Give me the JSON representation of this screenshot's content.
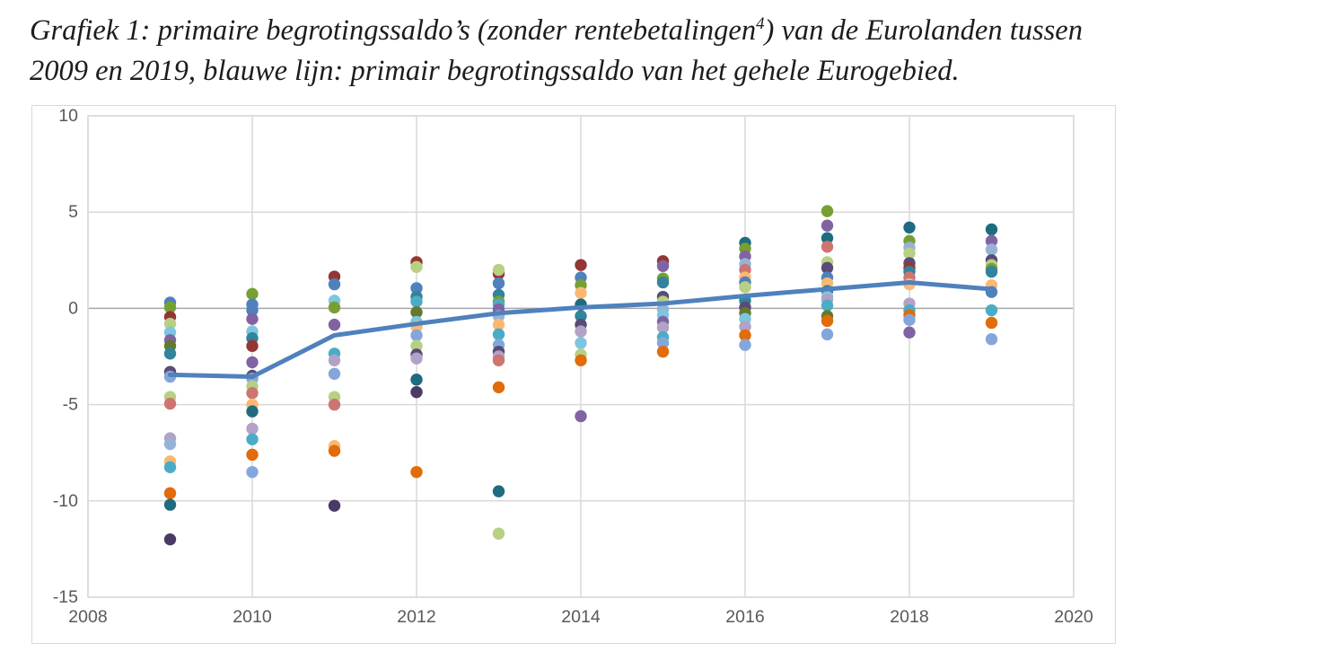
{
  "title": {
    "line1_pre": "Grafiek 1: primaire begrotingssaldo’s (zonder rentebetalingen",
    "line1_sup": "4",
    "line1_post": ") van de Eurolanden tussen",
    "line2": "2009 en 2019, blauwe lijn: primair begrotingssaldo van het gehele Eurogebied."
  },
  "chart_data": {
    "type": "scatter",
    "title": "",
    "xlabel": "",
    "ylabel": "",
    "x_range": [
      2008,
      2020
    ],
    "y_range": [
      -15,
      10
    ],
    "x_ticks": [
      2008,
      2010,
      2012,
      2014,
      2016,
      2018,
      2020
    ],
    "y_ticks": [
      10,
      5,
      0,
      -5,
      -10,
      -15
    ],
    "grid": true,
    "legend": "none",
    "axis_label_color": "#595959",
    "grid_color": "#d9d9d9",
    "zero_line_color": "#a6a6a6",
    "line_series": {
      "name": "primair begrotingssaldo gehele Eurogebied",
      "color": "#4F81BD",
      "width": 5,
      "x": [
        2009,
        2010,
        2011,
        2012,
        2013,
        2014,
        2015,
        2016,
        2017,
        2018,
        2019
      ],
      "y": [
        -3.45,
        -3.55,
        -1.4,
        -0.8,
        -0.25,
        0.05,
        0.25,
        0.65,
        1.0,
        1.35,
        1.0
      ]
    },
    "palette": {
      "steelblue": "#4F81BD",
      "olive": "#77A033",
      "maroon": "#943634",
      "sky": "#7DC6E2",
      "purple": "#8064A2",
      "darkolive": "#637A2D",
      "teal": "#31849B",
      "indigo": "#5B4B77",
      "cornflower": "#84A7DB",
      "lightgreen": "#B7D084",
      "rose": "#CE7572",
      "lavender": "#B3A2C7",
      "paleblue": "#95B3D7",
      "peach": "#FAB873",
      "cyan": "#4BACC6",
      "darkorange": "#E26B0A",
      "darkteal": "#1F6C80",
      "darkindigo": "#4B3A63"
    },
    "dot_radius": 6.7,
    "scatter": [
      {
        "year": 2009,
        "points": [
          {
            "v": 0.3,
            "c": "steelblue"
          },
          {
            "v": 0.05,
            "c": "olive"
          },
          {
            "v": -0.45,
            "c": "maroon"
          },
          {
            "v": -0.8,
            "c": "lightgreen"
          },
          {
            "v": -1.25,
            "c": "sky"
          },
          {
            "v": -1.65,
            "c": "purple"
          },
          {
            "v": -1.95,
            "c": "darkolive"
          },
          {
            "v": -2.35,
            "c": "teal"
          },
          {
            "v": -3.3,
            "c": "indigo"
          },
          {
            "v": -3.55,
            "c": "cornflower"
          },
          {
            "v": -4.6,
            "c": "lightgreen"
          },
          {
            "v": -4.95,
            "c": "rose"
          },
          {
            "v": -6.75,
            "c": "lavender"
          },
          {
            "v": -7.05,
            "c": "paleblue"
          },
          {
            "v": -7.95,
            "c": "peach"
          },
          {
            "v": -8.25,
            "c": "cyan"
          },
          {
            "v": -9.6,
            "c": "darkorange"
          },
          {
            "v": -10.2,
            "c": "darkteal"
          },
          {
            "v": -12.0,
            "c": "darkindigo"
          }
        ]
      },
      {
        "year": 2010,
        "points": [
          {
            "v": 0.75,
            "c": "olive"
          },
          {
            "v": 0.2,
            "c": "steelblue"
          },
          {
            "v": -0.1,
            "c": "steelblue"
          },
          {
            "v": -0.55,
            "c": "purple"
          },
          {
            "v": -1.2,
            "c": "sky"
          },
          {
            "v": -1.55,
            "c": "teal"
          },
          {
            "v": -1.95,
            "c": "maroon"
          },
          {
            "v": -2.8,
            "c": "purple"
          },
          {
            "v": -3.5,
            "c": "indigo"
          },
          {
            "v": -3.65,
            "c": "cornflower"
          },
          {
            "v": -4.05,
            "c": "lightgreen"
          },
          {
            "v": -4.4,
            "c": "rose"
          },
          {
            "v": -5.0,
            "c": "peach"
          },
          {
            "v": -5.35,
            "c": "darkteal"
          },
          {
            "v": -6.25,
            "c": "lavender"
          },
          {
            "v": -6.8,
            "c": "cyan"
          },
          {
            "v": -7.6,
            "c": "darkorange"
          },
          {
            "v": -8.5,
            "c": "cornflower"
          }
        ]
      },
      {
        "year": 2011,
        "points": [
          {
            "v": 1.65,
            "c": "maroon"
          },
          {
            "v": 1.25,
            "c": "steelblue"
          },
          {
            "v": 0.4,
            "c": "sky"
          },
          {
            "v": 0.05,
            "c": "olive"
          },
          {
            "v": -0.85,
            "c": "purple"
          },
          {
            "v": -2.35,
            "c": "cyan"
          },
          {
            "v": -2.7,
            "c": "lavender"
          },
          {
            "v": -3.4,
            "c": "cornflower"
          },
          {
            "v": -4.6,
            "c": "lightgreen"
          },
          {
            "v": -5.0,
            "c": "rose"
          },
          {
            "v": -7.15,
            "c": "peach"
          },
          {
            "v": -7.4,
            "c": "darkorange"
          },
          {
            "v": -10.25,
            "c": "darkindigo"
          }
        ]
      },
      {
        "year": 2012,
        "points": [
          {
            "v": 2.4,
            "c": "maroon"
          },
          {
            "v": 2.15,
            "c": "lightgreen"
          },
          {
            "v": 1.05,
            "c": "steelblue"
          },
          {
            "v": 0.6,
            "c": "teal"
          },
          {
            "v": 0.35,
            "c": "cyan"
          },
          {
            "v": -0.2,
            "c": "darkolive"
          },
          {
            "v": -0.7,
            "c": "sky"
          },
          {
            "v": -0.95,
            "c": "peach"
          },
          {
            "v": -1.4,
            "c": "cornflower"
          },
          {
            "v": -1.95,
            "c": "lightgreen"
          },
          {
            "v": -2.4,
            "c": "indigo"
          },
          {
            "v": -2.6,
            "c": "lavender"
          },
          {
            "v": -3.7,
            "c": "darkteal"
          },
          {
            "v": -4.35,
            "c": "darkindigo"
          },
          {
            "v": -8.5,
            "c": "darkorange"
          }
        ]
      },
      {
        "year": 2013,
        "points": [
          {
            "v": 1.8,
            "c": "maroon"
          },
          {
            "v": 2.0,
            "c": "lightgreen"
          },
          {
            "v": 1.3,
            "c": "steelblue"
          },
          {
            "v": 0.7,
            "c": "teal"
          },
          {
            "v": 0.35,
            "c": "olive"
          },
          {
            "v": 0.2,
            "c": "cyan"
          },
          {
            "v": -0.05,
            "c": "purple"
          },
          {
            "v": -0.4,
            "c": "paleblue"
          },
          {
            "v": -0.85,
            "c": "peach"
          },
          {
            "v": -1.35,
            "c": "cyan"
          },
          {
            "v": -1.9,
            "c": "cornflower"
          },
          {
            "v": -2.25,
            "c": "indigo"
          },
          {
            "v": -2.5,
            "c": "lavender"
          },
          {
            "v": -2.7,
            "c": "rose"
          },
          {
            "v": -4.1,
            "c": "darkorange"
          },
          {
            "v": -9.5,
            "c": "darkteal"
          },
          {
            "v": -11.7,
            "c": "lightgreen"
          }
        ]
      },
      {
        "year": 2014,
        "points": [
          {
            "v": 2.25,
            "c": "maroon"
          },
          {
            "v": 1.6,
            "c": "steelblue"
          },
          {
            "v": 1.2,
            "c": "olive"
          },
          {
            "v": 0.8,
            "c": "peach"
          },
          {
            "v": 0.2,
            "c": "darkteal"
          },
          {
            "v": -0.4,
            "c": "teal"
          },
          {
            "v": -0.85,
            "c": "indigo"
          },
          {
            "v": -1.2,
            "c": "lavender"
          },
          {
            "v": -1.8,
            "c": "sky"
          },
          {
            "v": -2.4,
            "c": "lightgreen"
          },
          {
            "v": -2.7,
            "c": "darkorange"
          },
          {
            "v": -5.6,
            "c": "purple"
          }
        ]
      },
      {
        "year": 2015,
        "points": [
          {
            "v": 2.45,
            "c": "maroon"
          },
          {
            "v": 2.2,
            "c": "purple"
          },
          {
            "v": 1.55,
            "c": "olive"
          },
          {
            "v": 1.35,
            "c": "teal"
          },
          {
            "v": 0.6,
            "c": "indigo"
          },
          {
            "v": 0.35,
            "c": "lightgreen"
          },
          {
            "v": -0.05,
            "c": "paleblue"
          },
          {
            "v": -0.35,
            "c": "sky"
          },
          {
            "v": -0.7,
            "c": "purple"
          },
          {
            "v": -1.0,
            "c": "lavender"
          },
          {
            "v": -1.5,
            "c": "cyan"
          },
          {
            "v": -1.8,
            "c": "cornflower"
          },
          {
            "v": -2.25,
            "c": "darkorange"
          }
        ]
      },
      {
        "year": 2016,
        "points": [
          {
            "v": 3.4,
            "c": "darkteal"
          },
          {
            "v": 3.1,
            "c": "olive"
          },
          {
            "v": 2.7,
            "c": "purple"
          },
          {
            "v": 2.3,
            "c": "paleblue"
          },
          {
            "v": 2.0,
            "c": "rose"
          },
          {
            "v": 1.6,
            "c": "peach"
          },
          {
            "v": 1.35,
            "c": "steelblue"
          },
          {
            "v": 1.1,
            "c": "lightgreen"
          },
          {
            "v": 0.4,
            "c": "teal"
          },
          {
            "v": 0.05,
            "c": "indigo"
          },
          {
            "v": -0.25,
            "c": "darkolive"
          },
          {
            "v": -0.55,
            "c": "sky"
          },
          {
            "v": -0.95,
            "c": "lavender"
          },
          {
            "v": -1.4,
            "c": "darkorange"
          },
          {
            "v": -1.9,
            "c": "cornflower"
          }
        ]
      },
      {
        "year": 2017,
        "points": [
          {
            "v": 5.05,
            "c": "olive"
          },
          {
            "v": 4.3,
            "c": "purple"
          },
          {
            "v": 3.65,
            "c": "darkteal"
          },
          {
            "v": 3.2,
            "c": "rose"
          },
          {
            "v": 2.4,
            "c": "lightgreen"
          },
          {
            "v": 2.1,
            "c": "indigo"
          },
          {
            "v": 1.6,
            "c": "steelblue"
          },
          {
            "v": 1.3,
            "c": "peach"
          },
          {
            "v": 0.9,
            "c": "teal"
          },
          {
            "v": 0.6,
            "c": "sky"
          },
          {
            "v": 0.45,
            "c": "lavender"
          },
          {
            "v": 0.15,
            "c": "cyan"
          },
          {
            "v": -0.4,
            "c": "darkolive"
          },
          {
            "v": -0.65,
            "c": "darkorange"
          },
          {
            "v": -1.35,
            "c": "cornflower"
          }
        ]
      },
      {
        "year": 2018,
        "points": [
          {
            "v": 4.2,
            "c": "darkteal"
          },
          {
            "v": 3.5,
            "c": "olive"
          },
          {
            "v": 3.15,
            "c": "paleblue"
          },
          {
            "v": 2.85,
            "c": "lightgreen"
          },
          {
            "v": 2.35,
            "c": "indigo"
          },
          {
            "v": 2.1,
            "c": "maroon"
          },
          {
            "v": 1.9,
            "c": "teal"
          },
          {
            "v": 1.6,
            "c": "rose"
          },
          {
            "v": 1.25,
            "c": "peach"
          },
          {
            "v": 0.25,
            "c": "lavender"
          },
          {
            "v": -0.1,
            "c": "cyan"
          },
          {
            "v": -0.35,
            "c": "darkorange"
          },
          {
            "v": -0.6,
            "c": "cornflower"
          },
          {
            "v": -1.25,
            "c": "purple"
          }
        ]
      },
      {
        "year": 2019,
        "points": [
          {
            "v": 4.1,
            "c": "darkteal"
          },
          {
            "v": 3.5,
            "c": "purple"
          },
          {
            "v": 3.05,
            "c": "paleblue"
          },
          {
            "v": 2.5,
            "c": "indigo"
          },
          {
            "v": 2.25,
            "c": "lightgreen"
          },
          {
            "v": 2.05,
            "c": "olive"
          },
          {
            "v": 1.9,
            "c": "teal"
          },
          {
            "v": 1.2,
            "c": "peach"
          },
          {
            "v": 0.85,
            "c": "steelblue"
          },
          {
            "v": -0.1,
            "c": "cyan"
          },
          {
            "v": -0.75,
            "c": "darkorange"
          },
          {
            "v": -1.6,
            "c": "cornflower"
          }
        ]
      }
    ]
  }
}
